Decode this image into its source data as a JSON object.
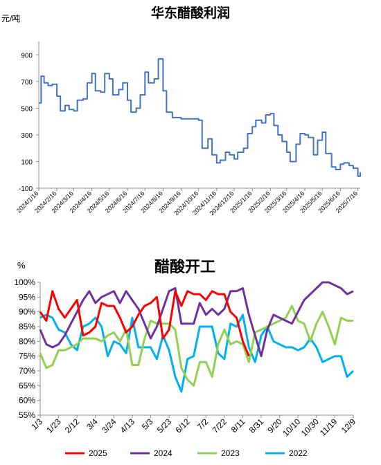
{
  "charts": [
    {
      "title": "华东醋酸利润",
      "unit": "元/吨",
      "chart_data": {
        "type": "line",
        "title": "华东醋酸利润",
        "ylabel": "元/吨",
        "ylim": [
          -100,
          1000
        ],
        "yticks": [
          -100,
          100,
          300,
          500,
          700,
          900
        ],
        "x_tick_labels": [
          "2024/1/16",
          "2024/2/16",
          "2024/3/16",
          "2024/4/16",
          "2024/5/16",
          "2024/6/16",
          "2024/7/16",
          "2024/8/16",
          "2024/9/16",
          "2024/10/16",
          "2024/11/16",
          "2024/12/16",
          "2025/1/16",
          "2025/2/16",
          "2025/3/16",
          "2025/4/16",
          "2025/5/16",
          "2025/6/16",
          "2025/7/16"
        ],
        "grid": false,
        "color": "#4472C4",
        "series": [
          {
            "x": [
              "2024/1/16",
              "2024/1/20",
              "2024/1/25",
              "2024/2/1",
              "2024/2/8",
              "2024/2/16",
              "2024/2/22",
              "2024/3/1",
              "2024/3/8",
              "2024/3/16",
              "2024/3/22",
              "2024/4/1",
              "2024/4/8",
              "2024/4/16",
              "2024/4/22",
              "2024/5/1",
              "2024/5/8",
              "2024/5/16",
              "2024/5/22",
              "2024/6/1",
              "2024/6/8",
              "2024/6/16",
              "2024/6/22",
              "2024/7/1",
              "2024/7/8",
              "2024/7/16",
              "2024/7/22",
              "2024/8/1",
              "2024/8/8",
              "2024/8/16",
              "2024/8/22",
              "2024/9/1",
              "2024/9/16",
              "2024/10/1",
              "2024/10/16",
              "2024/10/22",
              "2024/11/1",
              "2024/11/8",
              "2024/11/16",
              "2024/11/22",
              "2024/12/1",
              "2024/12/8",
              "2024/12/16",
              "2024/12/22",
              "2025/1/1",
              "2025/1/8",
              "2025/1/16",
              "2025/1/22",
              "2025/2/1",
              "2025/2/8",
              "2025/2/16",
              "2025/2/22",
              "2025/3/1",
              "2025/3/8",
              "2025/3/16",
              "2025/3/22",
              "2025/4/1",
              "2025/4/8",
              "2025/4/16",
              "2025/4/22",
              "2025/5/1",
              "2025/5/8",
              "2025/5/16",
              "2025/5/22",
              "2025/6/1",
              "2025/6/8",
              "2025/6/16",
              "2025/6/22",
              "2025/7/1",
              "2025/7/8",
              "2025/7/16",
              "2025/7/20"
            ],
            "values": [
              540,
              740,
              690,
              670,
              680,
              590,
              480,
              520,
              490,
              480,
              560,
              570,
              690,
              760,
              630,
              620,
              760,
              720,
              600,
              640,
              690,
              560,
              470,
              500,
              600,
              770,
              690,
              720,
              870,
              630,
              470,
              430,
              420,
              420,
              410,
              200,
              270,
              150,
              90,
              110,
              170,
              150,
              120,
              170,
              200,
              310,
              360,
              410,
              390,
              450,
              460,
              370,
              300,
              250,
              170,
              100,
              230,
              310,
              300,
              280,
              150,
              260,
              320,
              160,
              60,
              40,
              80,
              90,
              70,
              50,
              -10,
              20
            ]
          }
        ]
      }
    },
    {
      "title": "醋酸开工",
      "unit": "%",
      "chart_data": {
        "type": "line",
        "title": "醋酸开工",
        "ylabel": "%",
        "ylim": [
          55,
          100
        ],
        "yticks": [
          "55%",
          "60%",
          "65%",
          "70%",
          "75%",
          "80%",
          "85%",
          "90%",
          "95%",
          "100%"
        ],
        "categories": [
          "1/3",
          "1/23",
          "2/12",
          "3/4",
          "3/24",
          "4/13",
          "5/3",
          "5/23",
          "6/12",
          "7/2",
          "7/22",
          "8/11",
          "8/31",
          "9/20",
          "10/10",
          "10/30",
          "11/19",
          "12/9"
        ],
        "legend_position": "bottom",
        "series": [
          {
            "name": "2025",
            "color": "#FF0000",
            "x": [
              0,
              1,
              2,
              3,
              4,
              5,
              6,
              7,
              8,
              9,
              10,
              11,
              12,
              13,
              14,
              15,
              16,
              17,
              18,
              19,
              20,
              21,
              22,
              23,
              24,
              25,
              26,
              27,
              28,
              29,
              30,
              31,
              32,
              33,
              34
            ],
            "values": [
              90,
              87,
              97,
              91,
              88,
              91,
              94,
              82,
              83,
              85,
              93,
              92,
              92,
              88,
              83,
              85,
              89,
              92,
              93,
              95,
              81,
              84,
              97,
              92,
              97,
              96,
              96,
              94,
              97,
              96,
              96,
              90,
              88,
              80,
              75
            ]
          },
          {
            "name": "2024",
            "color": "#7030A0",
            "x": [
              0,
              1,
              2,
              3,
              4,
              5,
              6,
              7,
              8,
              9,
              10,
              11,
              12,
              13,
              14,
              15,
              16,
              17,
              18,
              19,
              20,
              21,
              22,
              23,
              24,
              25,
              26,
              27,
              28,
              29,
              30,
              31,
              32,
              33,
              34,
              35,
              36,
              37,
              38,
              39,
              40,
              41,
              42,
              43,
              44,
              45,
              46,
              47,
              48,
              49,
              50,
              51
            ],
            "values": [
              84,
              79,
              78,
              79,
              82,
              86,
              90,
              94,
              97,
              93,
              95,
              96,
              97,
              93,
              97,
              94,
              91,
              86,
              81,
              85,
              91,
              97,
              98,
              86,
              86,
              86,
              93,
              89,
              91,
              89,
              91,
              97,
              97,
              98,
              89,
              82,
              75,
              84,
              89,
              88,
              87,
              86,
              90,
              94,
              96,
              98,
              100,
              100,
              99,
              98,
              96,
              97
            ]
          },
          {
            "name": "2023",
            "color": "#92D050",
            "x": [
              0,
              1,
              2,
              3,
              4,
              5,
              6,
              7,
              8,
              9,
              10,
              11,
              12,
              13,
              14,
              15,
              16,
              17,
              18,
              19,
              20,
              21,
              22,
              23,
              24,
              25,
              26,
              27,
              28,
              29,
              30,
              31,
              32,
              33,
              34,
              35,
              36,
              37,
              38,
              39,
              40,
              41,
              42,
              43,
              44,
              45,
              46,
              47,
              48,
              49,
              50,
              51
            ],
            "values": [
              76,
              71,
              72,
              77,
              77,
              78,
              79,
              81,
              81,
              81,
              80,
              82,
              83,
              80,
              84,
              72,
              72,
              81,
              87,
              86,
              86,
              86,
              84,
              71,
              67,
              65,
              73,
              73,
              68,
              79,
              84,
              79,
              80,
              79,
              73,
              83,
              84,
              85,
              86,
              87,
              88,
              92,
              87,
              86,
              80,
              86,
              90,
              85,
              79,
              88,
              87,
              87
            ]
          },
          {
            "name": "2022",
            "color": "#00B0F0",
            "x": [
              0,
              1,
              2,
              3,
              4,
              5,
              6,
              7,
              8,
              9,
              10,
              11,
              12,
              13,
              14,
              15,
              16,
              17,
              18,
              19,
              20,
              21,
              22,
              23,
              24,
              25,
              26,
              27,
              28,
              29,
              30,
              31,
              32,
              33,
              34,
              35,
              36,
              37,
              38,
              39,
              40,
              41,
              42,
              43,
              44,
              45,
              46,
              47,
              48,
              49,
              50,
              51
            ],
            "values": [
              88,
              89,
              88,
              84,
              83,
              79,
              77,
              85,
              86,
              88,
              85,
              75,
              80,
              79,
              76,
              88,
              78,
              78,
              78,
              74,
              82,
              77,
              68,
              63,
              74,
              75,
              85,
              85,
              85,
              76,
              74,
              86,
              85,
              89,
              78,
              73,
              82,
              85,
              80,
              79,
              78,
              78,
              77,
              78,
              81,
              78,
              73,
              74,
              75,
              75,
              68,
              70
            ]
          }
        ]
      }
    }
  ]
}
